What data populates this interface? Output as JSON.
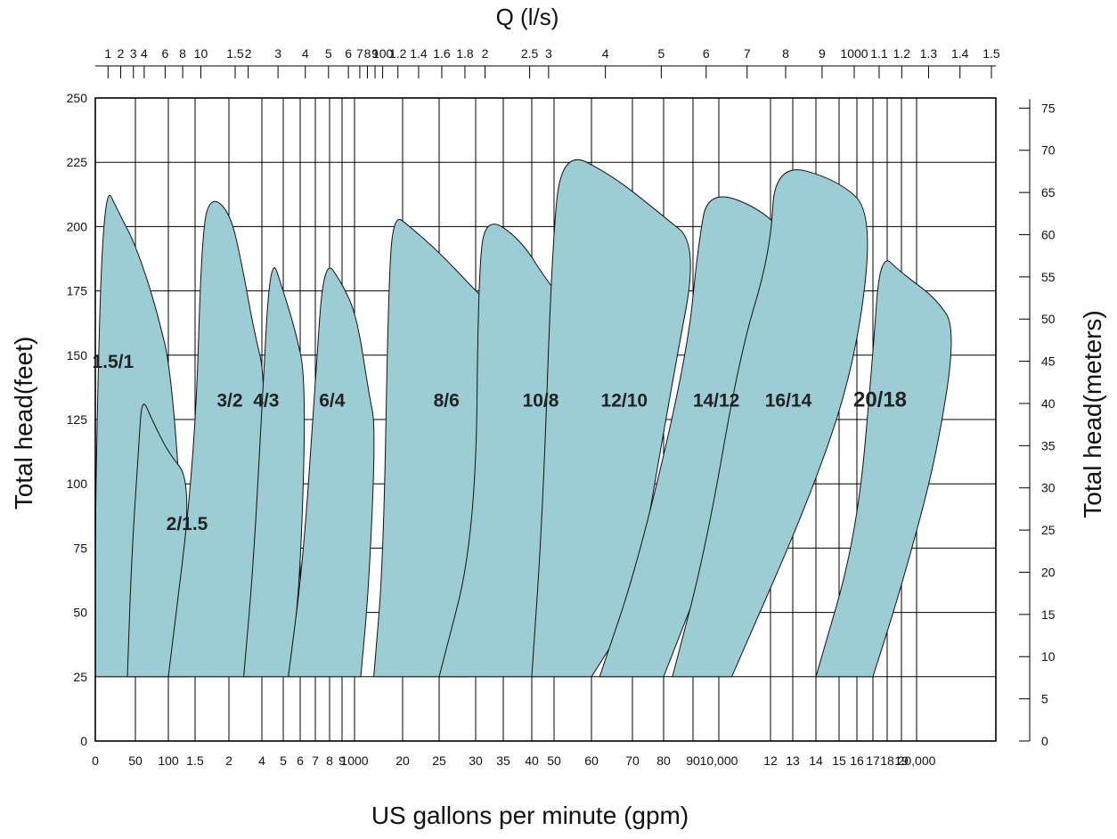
{
  "chart_data": {
    "type": "area",
    "title": "",
    "top_axis_title": "Q  (l/s)",
    "xlabel": "US gallons per minute (gpm)",
    "ylabel_left": "Total head(feet)",
    "ylabel_right": "Total head(meters)",
    "fill_color": "#9ccdd4",
    "y_left": {
      "ylim": [
        0,
        250
      ],
      "ticks": [
        0,
        25,
        50,
        75,
        100,
        125,
        150,
        175,
        200,
        225,
        250
      ]
    },
    "y_right": {
      "ylim": [
        0,
        76.2
      ],
      "ticks": [
        0,
        5,
        10,
        15,
        20,
        25,
        30,
        35,
        40,
        45,
        50,
        55,
        60,
        65,
        70,
        75
      ]
    },
    "x_bottom_ticks": [
      {
        "label": "0",
        "gpm": 0
      },
      {
        "label": "50",
        "gpm": 50
      },
      {
        "label": "100",
        "gpm": 100
      },
      {
        "label": "1.5",
        "gpm": 150
      },
      {
        "label": "2",
        "gpm": 200
      },
      {
        "label": "4",
        "gpm": 400
      },
      {
        "label": "5",
        "gpm": 500
      },
      {
        "label": "6",
        "gpm": 600
      },
      {
        "label": "7",
        "gpm": 700
      },
      {
        "label": "8",
        "gpm": 800
      },
      {
        "label": "9",
        "gpm": 900
      },
      {
        "label": "1000",
        "gpm": 1000
      },
      {
        "label": "20",
        "gpm": 2000
      },
      {
        "label": "25",
        "gpm": 2500
      },
      {
        "label": "30",
        "gpm": 3000
      },
      {
        "label": "35",
        "gpm": 3500
      },
      {
        "label": "40",
        "gpm": 4000
      },
      {
        "label": "50",
        "gpm": 5000
      },
      {
        "label": "60",
        "gpm": 6000
      },
      {
        "label": "70",
        "gpm": 7000
      },
      {
        "label": "80",
        "gpm": 8000
      },
      {
        "label": "90",
        "gpm": 9000
      },
      {
        "label": "10,000",
        "gpm": 10000
      },
      {
        "label": "12",
        "gpm": 12000
      },
      {
        "label": "13",
        "gpm": 13000
      },
      {
        "label": "14",
        "gpm": 14000
      },
      {
        "label": "15",
        "gpm": 15000
      },
      {
        "label": "16",
        "gpm": 16000
      },
      {
        "label": "17",
        "gpm": 17000
      },
      {
        "label": "18",
        "gpm": 18000
      },
      {
        "label": "19",
        "gpm": 19000
      },
      {
        "label": "20,000",
        "gpm": 20000
      }
    ],
    "x_top_ticks": [
      {
        "label": "1",
        "gpm": 15.85
      },
      {
        "label": "2",
        "gpm": 31.7
      },
      {
        "label": "3",
        "gpm": 47.55
      },
      {
        "label": "4",
        "gpm": 63.4
      },
      {
        "label": "6",
        "gpm": 95.1
      },
      {
        "label": "8",
        "gpm": 126.8
      },
      {
        "label": "10",
        "gpm": 158.5
      },
      {
        "label": "1.5",
        "gpm": 237.8
      },
      {
        "label": "2",
        "gpm": 317
      },
      {
        "label": "3",
        "gpm": 475.5
      },
      {
        "label": "4",
        "gpm": 634
      },
      {
        "label": "5",
        "gpm": 792.5
      },
      {
        "label": "6",
        "gpm": 951
      },
      {
        "label": "7",
        "gpm": 1109.5
      },
      {
        "label": "8",
        "gpm": 1268
      },
      {
        "label": "9",
        "gpm": 1426.5
      },
      {
        "label": "100",
        "gpm": 1585
      },
      {
        "label": "1.2",
        "gpm": 1902
      },
      {
        "label": "1.4",
        "gpm": 2219
      },
      {
        "label": "1.6",
        "gpm": 2536
      },
      {
        "label": "1.8",
        "gpm": 2853
      },
      {
        "label": "2",
        "gpm": 3170
      },
      {
        "label": "2.5",
        "gpm": 3962.5
      },
      {
        "label": "3",
        "gpm": 4755
      },
      {
        "label": "4",
        "gpm": 6340
      },
      {
        "label": "5",
        "gpm": 7925
      },
      {
        "label": "6",
        "gpm": 9510
      },
      {
        "label": "7",
        "gpm": 11095
      },
      {
        "label": "8",
        "gpm": 12680
      },
      {
        "label": "9",
        "gpm": 14265
      },
      {
        "label": "1000",
        "gpm": 15850
      },
      {
        "label": "1.1",
        "gpm": 17435
      },
      {
        "label": "1.2",
        "gpm": 19020
      },
      {
        "label": "1.3",
        "gpm": 20605
      },
      {
        "label": "1.4",
        "gpm": 22190
      },
      {
        "label": "1.5",
        "gpm": 23775
      }
    ],
    "series": [
      {
        "name": "1.5/1",
        "label_at": [
          22,
          145
        ],
        "outline_gpm_head": [
          [
            0,
            25
          ],
          [
            0,
            100
          ],
          [
            10,
            218
          ],
          [
            30,
            205
          ],
          [
            50,
            193
          ],
          [
            80,
            170
          ],
          [
            110,
            140
          ],
          [
            140,
            25
          ]
        ]
      },
      {
        "name": "2/1.5",
        "label_at": [
          135,
          82
        ],
        "outline_gpm_head": [
          [
            40,
            25
          ],
          [
            45,
            70
          ],
          [
            55,
            115
          ],
          [
            60,
            134
          ],
          [
            75,
            125
          ],
          [
            100,
            112
          ],
          [
            140,
            102
          ],
          [
            125,
            60
          ],
          [
            100,
            25
          ]
        ]
      },
      {
        "name": "3/2",
        "label_at": [
          205,
          130
        ],
        "outline_gpm_head": [
          [
            100,
            25
          ],
          [
            150,
            110
          ],
          [
            160,
            200
          ],
          [
            175,
            212
          ],
          [
            210,
            205
          ],
          [
            280,
            185
          ],
          [
            350,
            160
          ],
          [
            420,
            140
          ],
          [
            380,
            60
          ],
          [
            320,
            25
          ]
        ]
      },
      {
        "name": "4/3",
        "label_at": [
          420,
          130
        ],
        "outline_gpm_head": [
          [
            290,
            25
          ],
          [
            350,
            70
          ],
          [
            400,
            130
          ],
          [
            440,
            190
          ],
          [
            500,
            175
          ],
          [
            570,
            160
          ],
          [
            640,
            140
          ],
          [
            600,
            60
          ],
          [
            530,
            25
          ]
        ]
      },
      {
        "name": "6/4",
        "label_at": [
          820,
          130
        ],
        "outline_gpm_head": [
          [
            530,
            25
          ],
          [
            620,
            70
          ],
          [
            700,
            140
          ],
          [
            760,
            188
          ],
          [
            900,
            178
          ],
          [
            1050,
            165
          ],
          [
            1300,
            135
          ],
          [
            1440,
            122
          ],
          [
            1300,
            60
          ],
          [
            1130,
            25
          ]
        ]
      },
      {
        "name": "8/6",
        "label_at": [
          2600,
          130
        ],
        "outline_gpm_head": [
          [
            1400,
            25
          ],
          [
            1600,
            70
          ],
          [
            1700,
            172
          ],
          [
            1800,
            205
          ],
          [
            2100,
            200
          ],
          [
            2500,
            190
          ],
          [
            3000,
            175
          ],
          [
            3700,
            160
          ],
          [
            3200,
            110
          ],
          [
            2900,
            25
          ]
        ]
      },
      {
        "name": "10/8",
        "label_at": [
          4400,
          130
        ],
        "outline_gpm_head": [
          [
            2500,
            25
          ],
          [
            3000,
            80
          ],
          [
            3050,
            185
          ],
          [
            3200,
            204
          ],
          [
            3800,
            195
          ],
          [
            4600,
            180
          ],
          [
            5300,
            170
          ],
          [
            4700,
            100
          ],
          [
            4200,
            25
          ]
        ]
      },
      {
        "name": "12/10",
        "label_at": [
          6800,
          130
        ],
        "outline_gpm_head": [
          [
            4000,
            25
          ],
          [
            4500,
            90
          ],
          [
            4900,
            190
          ],
          [
            5200,
            230
          ],
          [
            6500,
            220
          ],
          [
            7900,
            205
          ],
          [
            9200,
            193
          ],
          [
            8300,
            140
          ],
          [
            7000,
            50
          ],
          [
            6000,
            25
          ]
        ]
      },
      {
        "name": "14/12",
        "label_at": [
          9900,
          130
        ],
        "outline_gpm_head": [
          [
            6200,
            25
          ],
          [
            7200,
            70
          ],
          [
            8800,
            150
          ],
          [
            9200,
            193
          ],
          [
            9600,
            215
          ],
          [
            12000,
            205
          ],
          [
            13000,
            190
          ],
          [
            11500,
            120
          ],
          [
            10000,
            80
          ],
          [
            8000,
            25
          ]
        ]
      },
      {
        "name": "16/14",
        "label_at": [
          12800,
          130
        ],
        "outline_gpm_head": [
          [
            8300,
            25
          ],
          [
            9500,
            75
          ],
          [
            10800,
            150
          ],
          [
            12000,
            190
          ],
          [
            12200,
            225
          ],
          [
            15000,
            218
          ],
          [
            17000,
            205
          ],
          [
            16000,
            150
          ],
          [
            14000,
            100
          ],
          [
            10500,
            25
          ]
        ]
      },
      {
        "name": "20/18",
        "label_at": [
          17500,
          130
        ],
        "outline_gpm_head": [
          [
            14000,
            25
          ],
          [
            16000,
            80
          ],
          [
            17000,
            150
          ],
          [
            17500,
            190
          ],
          [
            19000,
            182
          ],
          [
            21000,
            172
          ],
          [
            22000,
            160
          ],
          [
            21000,
            110
          ],
          [
            19000,
            60
          ],
          [
            17000,
            25
          ]
        ]
      }
    ],
    "grid": true,
    "legend": "none"
  }
}
